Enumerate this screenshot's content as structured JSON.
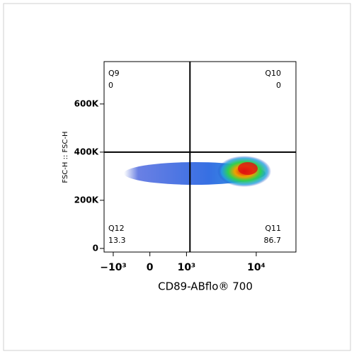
{
  "chart_data": {
    "type": "quadrant-scatter",
    "x_label": "CD89-ABflo® 700",
    "y_label": "FSC-H :: FSC-H",
    "xscale": "biexponential",
    "xlim": [
      -1400,
      35000
    ],
    "xticks": [
      {
        "value": -1000,
        "label": "−10³"
      },
      0,
      {
        "value": 1000,
        "label": "10³"
      },
      {
        "value": 10000,
        "label": "10⁴"
      }
    ],
    "ylim": [
      -15000,
      776000
    ],
    "yticks": [
      0,
      {
        "value": 200000,
        "label": "200K"
      },
      {
        "value": 400000,
        "label": "400K"
      },
      {
        "value": 600000,
        "label": "600K"
      }
    ],
    "gate": {
      "x": 1140,
      "y": 400000
    },
    "quadrants": [
      {
        "name": "Q9",
        "value": 0,
        "corner": "top-left"
      },
      {
        "name": "Q10",
        "value": 0,
        "corner": "top-right"
      },
      {
        "name": "Q11",
        "value": 86.7,
        "corner": "bottom-right"
      },
      {
        "name": "Q12",
        "value": 13.3,
        "corner": "bottom-left"
      }
    ]
  }
}
